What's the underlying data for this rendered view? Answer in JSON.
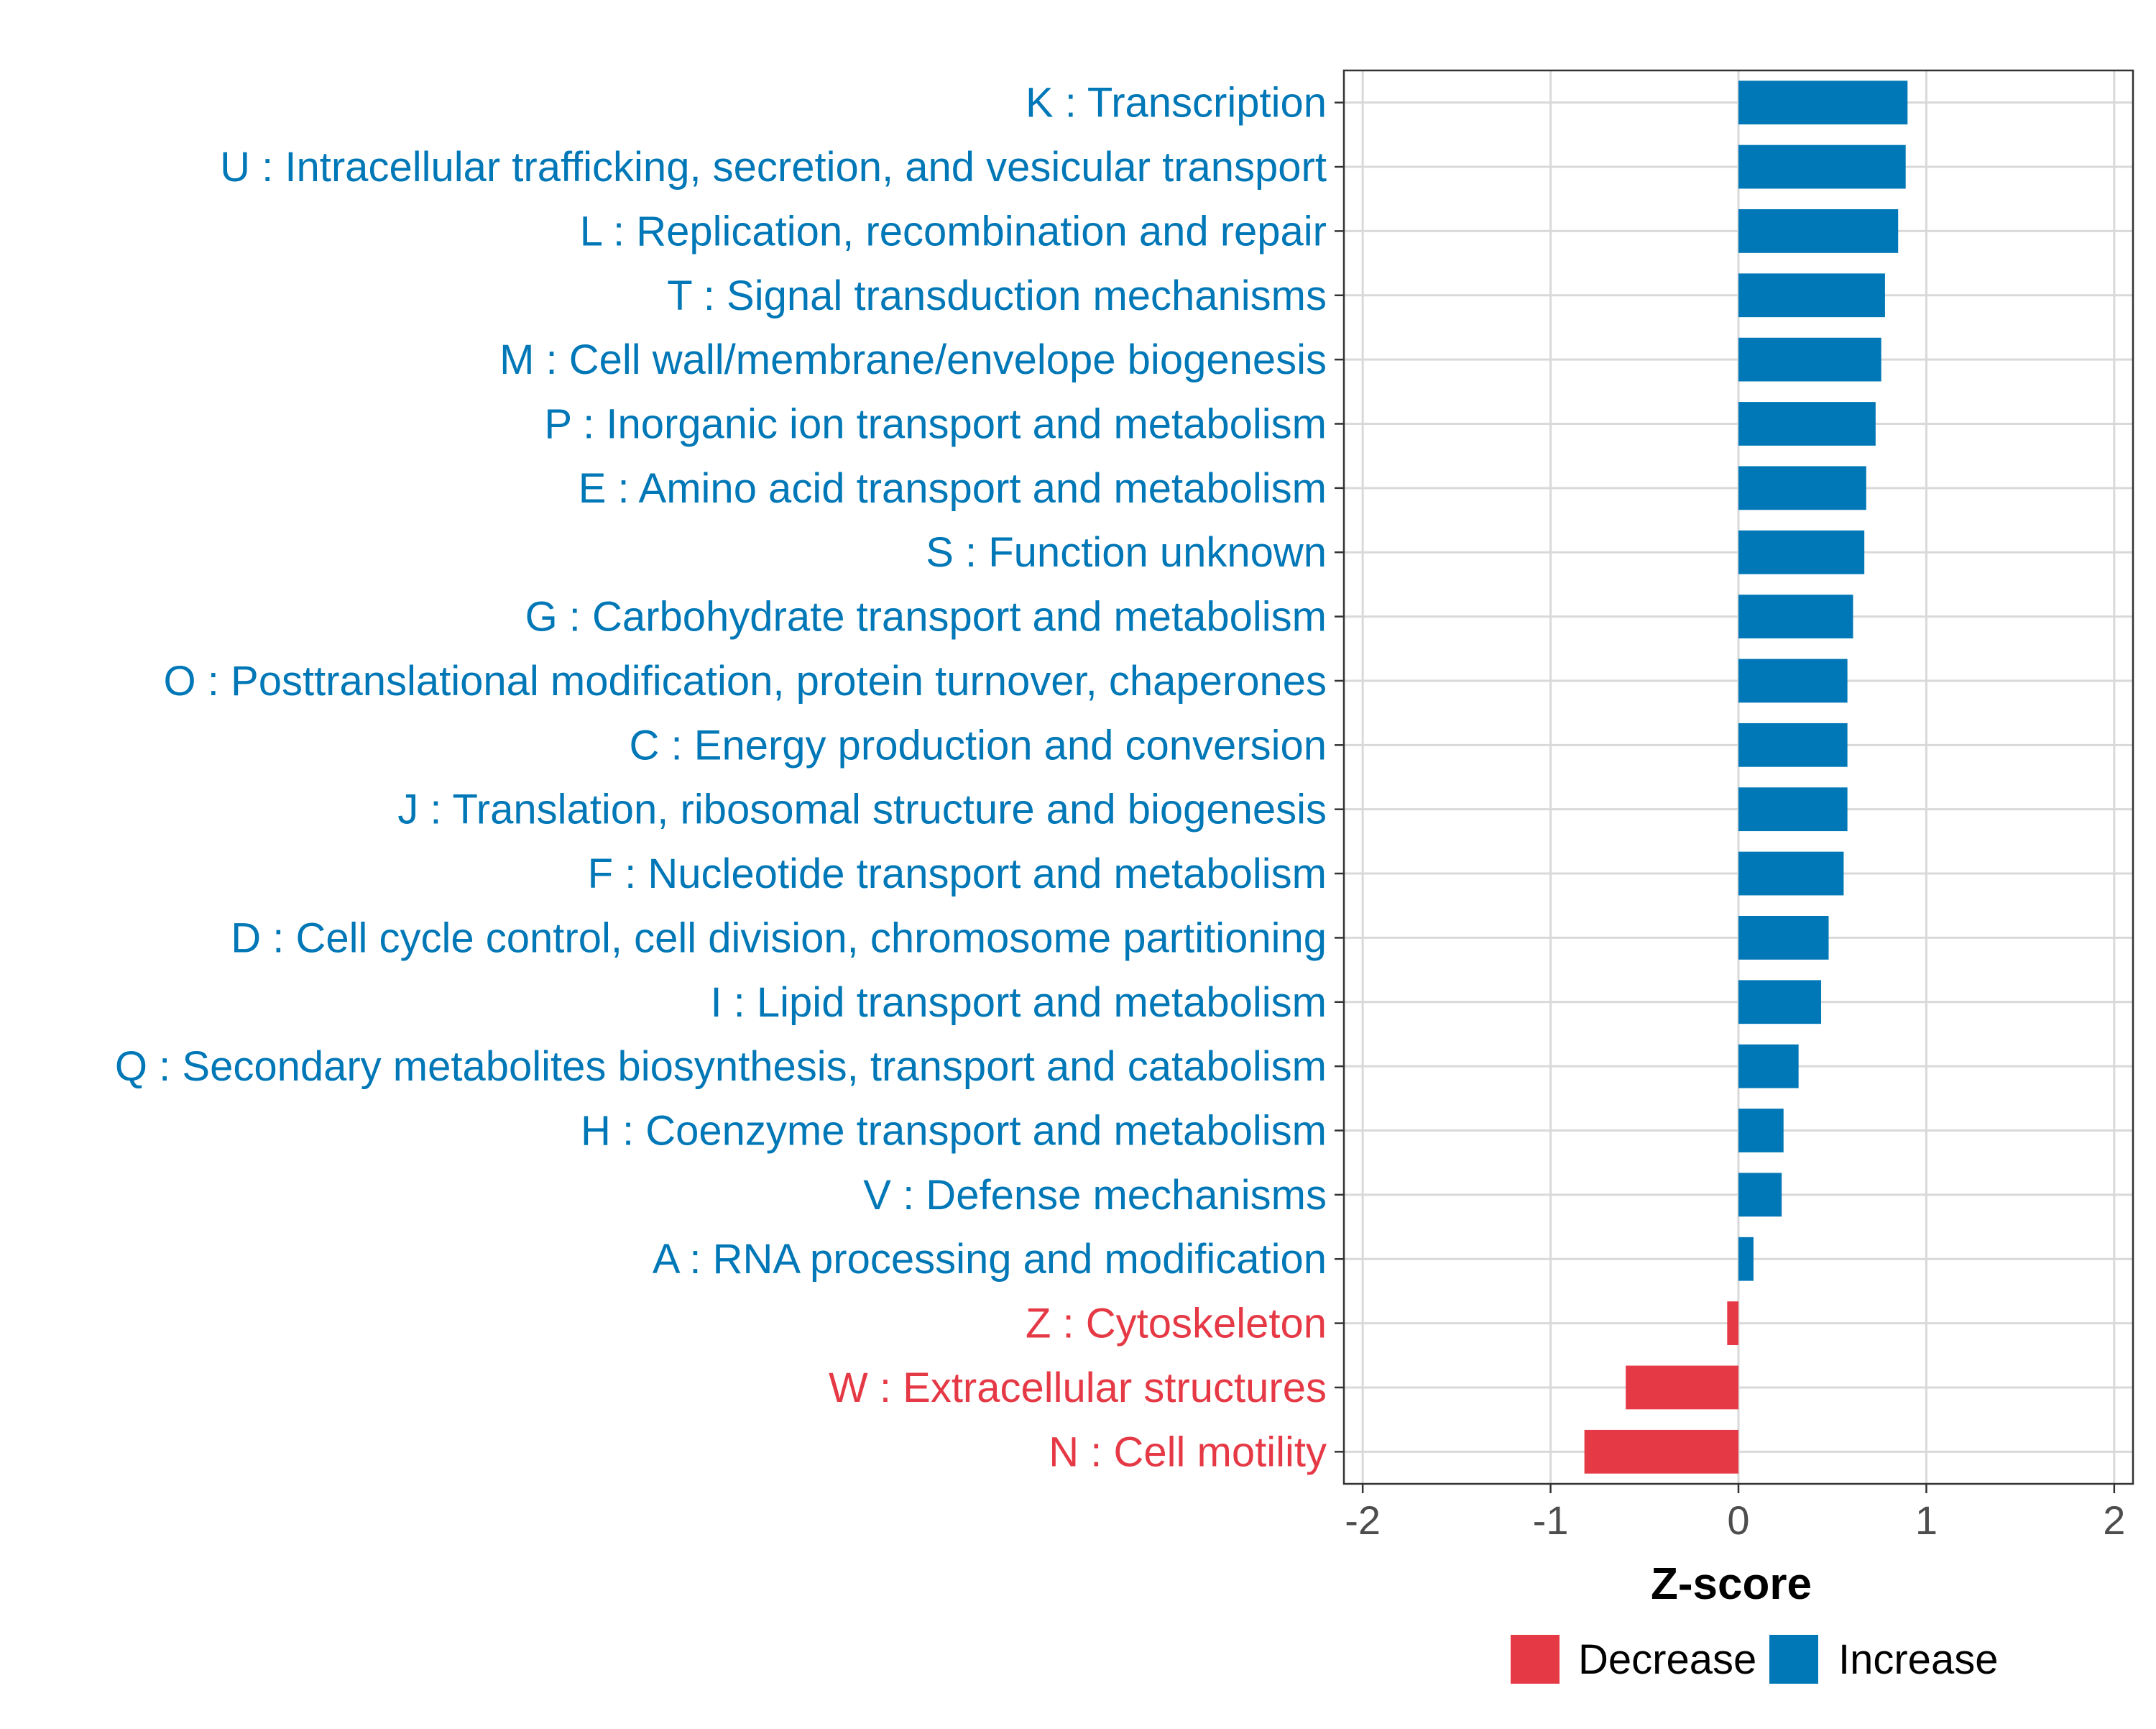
{
  "chart_data": {
    "type": "bar",
    "orientation": "horizontal",
    "xlabel": "Z-score",
    "ylabel": "",
    "xlim": [
      -2.1,
      2.1
    ],
    "xticks": [
      -2,
      -1,
      0,
      1,
      2
    ],
    "xtick_labels": [
      "-2",
      "-1",
      "0",
      "1",
      "2"
    ],
    "grid": true,
    "legend_position": "bottom",
    "colors": {
      "Decrease": "#e63946",
      "Increase": "#0077b6"
    },
    "legend": [
      {
        "name": "Decrease",
        "color": "#e63946"
      },
      {
        "name": "Increase",
        "color": "#0077b6"
      }
    ],
    "categories": [
      "K : Transcription",
      "U : Intracellular trafficking, secretion, and vesicular transport",
      "L : Replication, recombination and repair",
      "T : Signal transduction mechanisms",
      "M : Cell wall/membrane/envelope biogenesis",
      "P : Inorganic ion transport and metabolism",
      "E : Amino acid transport and metabolism",
      "S : Function unknown",
      "G : Carbohydrate transport and metabolism",
      "O : Posttranslational modification, protein turnover, chaperones",
      "C : Energy production and conversion",
      "J : Translation, ribosomal structure and biogenesis",
      "F : Nucleotide transport and metabolism",
      "D : Cell cycle control, cell division, chromosome partitioning",
      "I : Lipid transport and metabolism",
      "Q : Secondary metabolites biosynthesis, transport and catabolism",
      "H : Coenzyme transport and metabolism",
      "V : Defense mechanisms",
      "A : RNA processing and modification",
      "Z : Cytoskeleton",
      "W : Extracellular structures",
      "N : Cell motility"
    ],
    "values": [
      0.9,
      0.89,
      0.85,
      0.78,
      0.76,
      0.73,
      0.68,
      0.67,
      0.61,
      0.58,
      0.58,
      0.58,
      0.56,
      0.48,
      0.44,
      0.32,
      0.24,
      0.23,
      0.08,
      -0.06,
      -0.6,
      -0.82
    ],
    "groups": [
      "Increase",
      "Increase",
      "Increase",
      "Increase",
      "Increase",
      "Increase",
      "Increase",
      "Increase",
      "Increase",
      "Increase",
      "Increase",
      "Increase",
      "Increase",
      "Increase",
      "Increase",
      "Increase",
      "Increase",
      "Increase",
      "Increase",
      "Decrease",
      "Decrease",
      "Decrease"
    ]
  }
}
